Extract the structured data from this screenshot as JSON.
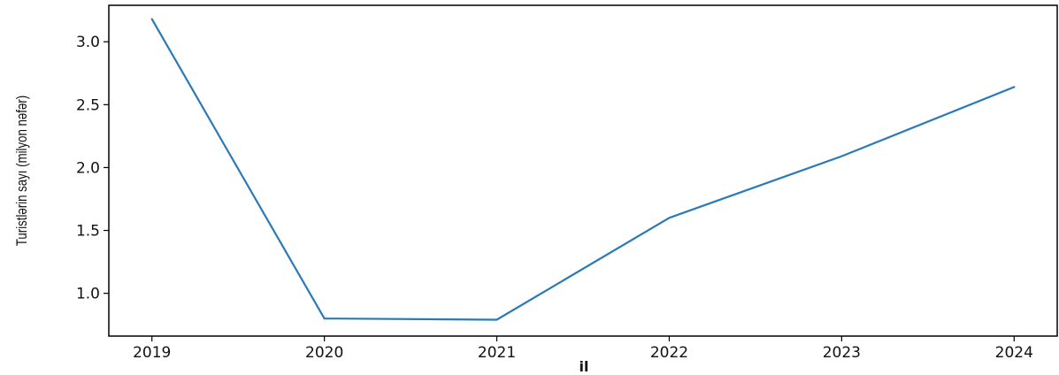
{
  "chart_data": {
    "type": "line",
    "title": "",
    "xlabel": "il",
    "ylabel": "Turistlərin sayı (milyon nəfər)",
    "x": [
      2019,
      2020,
      2021,
      2022,
      2023,
      2024
    ],
    "x_tick_labels": [
      "2019",
      "2020",
      "2021",
      "2022",
      "2023",
      "2024"
    ],
    "series": [
      {
        "values": [
          3.18,
          0.8,
          0.79,
          1.6,
          2.09,
          2.64
        ],
        "color": "#2a7ab8"
      }
    ],
    "y_ticks": [
      1.0,
      1.5,
      2.0,
      2.5,
      3.0
    ],
    "y_tick_labels": [
      "1.0",
      "1.5",
      "2.0",
      "2.5",
      "3.0"
    ],
    "xlim": [
      2018.75,
      2024.25
    ],
    "ylim": [
      0.66,
      3.29
    ],
    "grid": false,
    "legend": "none"
  }
}
